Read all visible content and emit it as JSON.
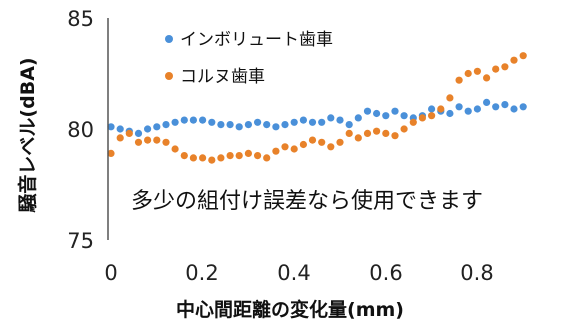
{
  "chart_data": {
    "type": "scatter",
    "xlabel": "中心間距離の変化量(mm)",
    "ylabel": "騒音レベル(dBA)",
    "xlim": [
      0,
      0.92
    ],
    "ylim": [
      75,
      85
    ],
    "xticks": [
      "0",
      "0.2",
      "0.4",
      "0.6",
      "0.8"
    ],
    "xtick_values": [
      0,
      0.2,
      0.4,
      0.6,
      0.8
    ],
    "yticks": [
      "75",
      "80",
      "85"
    ],
    "ytick_values": [
      75,
      80,
      85
    ],
    "grid": false,
    "legend_position": "top-left",
    "annotation": "多少の組付け誤差なら使用できます",
    "series": [
      {
        "name": "インボリュート歯車",
        "color": "#4a90d9",
        "x": [
          0.0,
          0.02,
          0.04,
          0.06,
          0.08,
          0.1,
          0.12,
          0.14,
          0.16,
          0.18,
          0.2,
          0.22,
          0.24,
          0.26,
          0.28,
          0.3,
          0.32,
          0.34,
          0.36,
          0.38,
          0.4,
          0.42,
          0.44,
          0.46,
          0.48,
          0.5,
          0.52,
          0.54,
          0.56,
          0.58,
          0.6,
          0.62,
          0.64,
          0.66,
          0.68,
          0.7,
          0.72,
          0.74,
          0.76,
          0.78,
          0.8,
          0.82,
          0.84,
          0.86,
          0.88,
          0.9
        ],
        "y": [
          80.1,
          80.0,
          79.9,
          79.8,
          80.0,
          80.1,
          80.2,
          80.3,
          80.4,
          80.4,
          80.4,
          80.3,
          80.2,
          80.2,
          80.1,
          80.2,
          80.3,
          80.2,
          80.1,
          80.2,
          80.3,
          80.4,
          80.3,
          80.3,
          80.5,
          80.4,
          80.2,
          80.5,
          80.8,
          80.7,
          80.6,
          80.8,
          80.6,
          80.5,
          80.6,
          80.9,
          80.8,
          80.7,
          81.0,
          80.8,
          80.9,
          81.2,
          81.0,
          81.1,
          80.9,
          81.0
        ]
      },
      {
        "name": "コルヌ歯車",
        "color": "#e8822a",
        "x": [
          0.0,
          0.02,
          0.04,
          0.06,
          0.08,
          0.1,
          0.12,
          0.14,
          0.16,
          0.18,
          0.2,
          0.22,
          0.24,
          0.26,
          0.28,
          0.3,
          0.32,
          0.34,
          0.36,
          0.38,
          0.4,
          0.42,
          0.44,
          0.46,
          0.48,
          0.5,
          0.52,
          0.54,
          0.56,
          0.58,
          0.6,
          0.62,
          0.64,
          0.66,
          0.68,
          0.7,
          0.72,
          0.74,
          0.76,
          0.78,
          0.8,
          0.82,
          0.84,
          0.86,
          0.88,
          0.9
        ],
        "y": [
          78.9,
          79.6,
          79.8,
          79.4,
          79.5,
          79.5,
          79.4,
          79.1,
          78.8,
          78.7,
          78.7,
          78.6,
          78.7,
          78.8,
          78.8,
          78.9,
          78.8,
          78.7,
          79.0,
          79.2,
          79.1,
          79.3,
          79.5,
          79.4,
          79.2,
          79.4,
          79.8,
          79.6,
          79.8,
          79.9,
          79.8,
          79.7,
          80.0,
          80.3,
          80.5,
          80.6,
          80.9,
          81.4,
          82.2,
          82.5,
          82.6,
          82.3,
          82.7,
          82.8,
          83.1,
          83.3
        ]
      }
    ]
  }
}
